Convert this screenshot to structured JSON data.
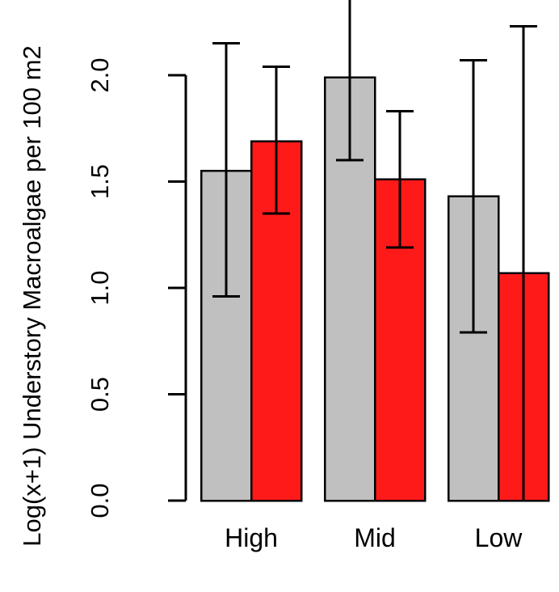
{
  "chart_data": {
    "type": "bar",
    "title": "",
    "xlabel": "",
    "ylabel": "Log(x+1) Understory Macroalgae per 100 m2",
    "ylim": [
      0,
      2.3
    ],
    "yticks": [
      0.0,
      0.5,
      1.0,
      1.5,
      2.0
    ],
    "ytick_labels": [
      "0.0",
      "0.5",
      "1.0",
      "1.5",
      "2.0"
    ],
    "categories": [
      "High",
      "Mid",
      "Low"
    ],
    "series": [
      {
        "color": "#c0c0c0",
        "values": [
          1.55,
          1.99,
          1.43
        ],
        "error_low": [
          0.96,
          1.6,
          0.79
        ],
        "error_high": [
          2.15,
          2.38,
          2.07
        ]
      },
      {
        "color": "#ff1a1a",
        "values": [
          1.69,
          1.51,
          1.07
        ],
        "error_low": [
          1.35,
          1.19,
          0.0
        ],
        "error_high": [
          2.04,
          1.83,
          2.23
        ]
      }
    ],
    "grid": false,
    "legend": "none"
  }
}
